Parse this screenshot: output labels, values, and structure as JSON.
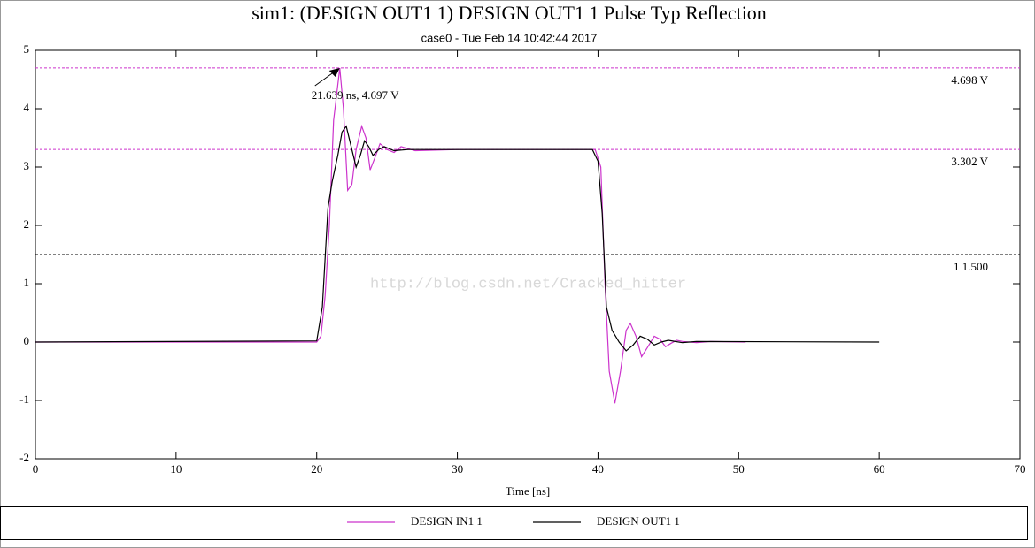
{
  "chart_data": {
    "type": "line",
    "title": "sim1: (DESIGN OUT1 1) DESIGN OUT1 1 Pulse Typ Reflection",
    "subtitle": "case0 - Tue Feb 14 10:42:44 2017",
    "x_label": "Time [ns]",
    "annotation": {
      "text": "21.639 ns, 4.697 V",
      "x": 21.639,
      "y": 4.697
    },
    "watermark": "http://blog.csdn.net/Cracked_hitter",
    "xlim": [
      0,
      70
    ],
    "xticks": [
      0,
      10,
      20,
      30,
      40,
      50,
      60,
      70
    ],
    "ylim": [
      -2,
      5
    ],
    "yticks": [
      -2,
      -1,
      0,
      1,
      2,
      3,
      4,
      5
    ],
    "markers": [
      {
        "value": 4.698,
        "label": "4.698 V",
        "color": "#cc33cc"
      },
      {
        "value": 3.302,
        "label": "3.302 V",
        "color": "#cc33cc"
      },
      {
        "value": 1.5,
        "label": "1 1.500",
        "color": "#000000"
      }
    ],
    "series": [
      {
        "name": "DESIGN IN1 1",
        "color": "#cc33cc",
        "x": [
          0,
          20,
          20.3,
          20.6,
          20.9,
          21.2,
          21.64,
          21.9,
          22.2,
          22.5,
          22.8,
          23.2,
          23.5,
          23.8,
          24.2,
          24.5,
          25,
          25.5,
          26,
          27,
          30,
          35,
          39.8,
          40.2,
          40.5,
          40.8,
          41.2,
          41.6,
          42,
          42.3,
          42.7,
          43.1,
          43.5,
          44,
          44.4,
          44.8,
          45.2,
          45.6,
          46,
          47,
          48,
          50.5
        ],
        "values": [
          0,
          0,
          0.1,
          0.8,
          2.0,
          3.8,
          4.697,
          4.0,
          2.6,
          2.7,
          3.3,
          3.7,
          3.5,
          2.95,
          3.2,
          3.4,
          3.3,
          3.25,
          3.35,
          3.28,
          3.3,
          3.3,
          3.3,
          3.0,
          1.0,
          -0.5,
          -1.05,
          -0.5,
          0.2,
          0.32,
          0.1,
          -0.25,
          -0.1,
          0.1,
          0.05,
          -0.08,
          -0.02,
          0.03,
          0.01,
          -0.01,
          0.01,
          0
        ]
      },
      {
        "name": "DESIGN OUT1 1",
        "color": "#000000",
        "x": [
          0,
          20,
          20.4,
          20.8,
          21.1,
          21.5,
          21.8,
          22.1,
          22.5,
          22.8,
          23.1,
          23.4,
          23.7,
          24.0,
          24.4,
          24.8,
          25.5,
          26.5,
          30,
          39.6,
          40.0,
          40.3,
          40.6,
          41.0,
          41.5,
          42.0,
          42.5,
          43.0,
          43.5,
          44.0,
          44.5,
          45,
          46,
          47,
          60
        ],
        "values": [
          0,
          0.02,
          0.6,
          2.3,
          2.75,
          3.2,
          3.6,
          3.7,
          3.3,
          3.0,
          3.2,
          3.45,
          3.35,
          3.2,
          3.3,
          3.35,
          3.28,
          3.3,
          3.3,
          3.3,
          3.1,
          2.2,
          0.6,
          0.2,
          0.0,
          -0.15,
          -0.05,
          0.1,
          0.05,
          -0.05,
          0.0,
          0.03,
          -0.01,
          0.01,
          0
        ]
      }
    ]
  }
}
